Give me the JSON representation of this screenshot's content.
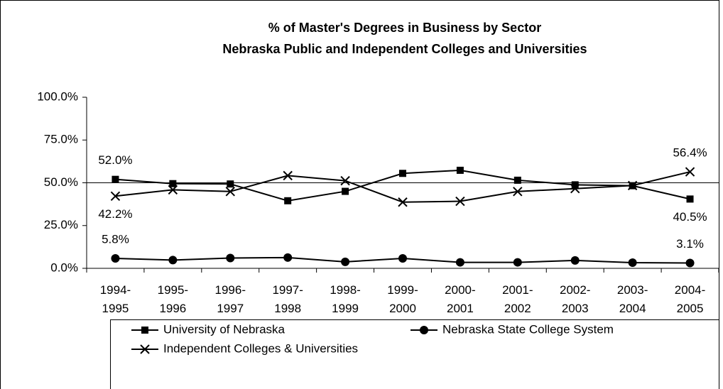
{
  "chart_data": {
    "type": "line",
    "title": [
      "% of Master's Degrees in Business by Sector",
      "Nebraska Public and Independent Colleges and Universities"
    ],
    "categories": [
      "1994-1995",
      "1995-1996",
      "1996-1997",
      "1997-1998",
      "1998-1999",
      "1999-2000",
      "2000-2001",
      "2001-2002",
      "2002-2003",
      "2003-2004",
      "2004-2005"
    ],
    "series": [
      {
        "name": "University of Nebraska",
        "color": "#000000",
        "marker": "square",
        "values": [
          52.0,
          49.5,
          49.3,
          39.5,
          45.0,
          55.5,
          57.3,
          51.5,
          48.8,
          48.3,
          40.5
        ],
        "value_labels": [
          "52.0%",
          null,
          null,
          null,
          null,
          null,
          null,
          null,
          null,
          null,
          "40.5%"
        ]
      },
      {
        "name": "Nebraska State College System",
        "color": "#000000",
        "marker": "circle",
        "values": [
          5.8,
          4.8,
          6.0,
          6.3,
          3.8,
          5.8,
          3.5,
          3.5,
          4.6,
          3.3,
          3.1
        ],
        "value_labels": [
          "5.8%",
          null,
          null,
          null,
          null,
          null,
          null,
          null,
          null,
          null,
          "3.1%"
        ]
      },
      {
        "name": "Independent Colleges & Universities",
        "color": "#000000",
        "marker": "x",
        "values": [
          42.2,
          45.9,
          44.9,
          54.2,
          51.2,
          38.7,
          39.2,
          44.9,
          46.6,
          48.4,
          56.4
        ],
        "value_labels": [
          "42.2%",
          null,
          null,
          null,
          null,
          null,
          null,
          null,
          null,
          null,
          "56.4%"
        ]
      }
    ],
    "ylim": [
      0,
      100
    ],
    "yticks": [
      {
        "value": 0,
        "label": "0.0%"
      },
      {
        "value": 25,
        "label": "25.0%"
      },
      {
        "value": 50,
        "label": "50.0%"
      },
      {
        "value": 75,
        "label": "75.0%"
      },
      {
        "value": 100,
        "label": "100.0%"
      }
    ],
    "gridlines": [
      50
    ],
    "legend": "bottom"
  }
}
